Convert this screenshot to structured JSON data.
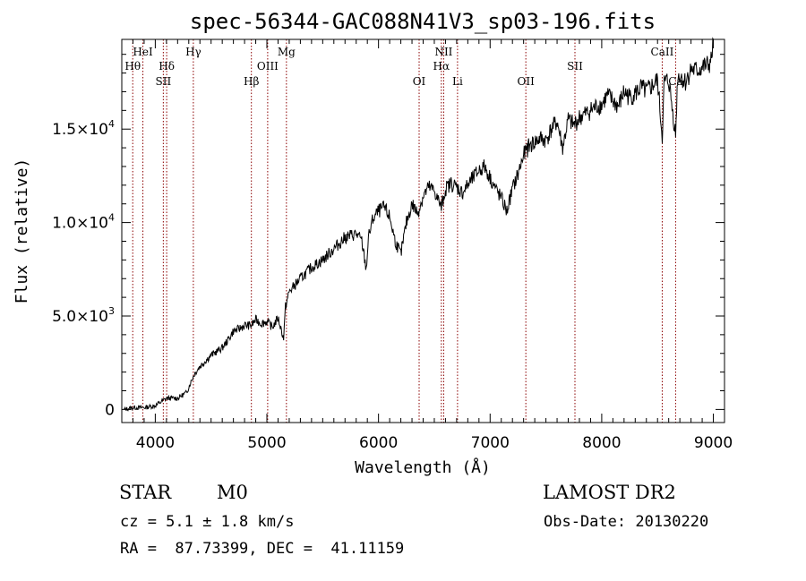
{
  "chart_data": {
    "type": "line",
    "title": "spec-56344-GAC088N41V3_sp03-196.fits",
    "xlabel": "Wavelength (Å)",
    "ylabel": "Flux (relative)",
    "xlim": [
      3700,
      9100
    ],
    "ylim": [
      -700,
      19800
    ],
    "x_ticks": [
      4000,
      5000,
      6000,
      7000,
      8000,
      9000
    ],
    "y_ticks": [
      {
        "value": 0,
        "label": "0"
      },
      {
        "value": 5000,
        "label": "5.0×10",
        "exp": "3"
      },
      {
        "value": 10000,
        "label": "1.0×10",
        "exp": "4"
      },
      {
        "value": 15000,
        "label": "1.5×10",
        "exp": "4"
      }
    ],
    "series": [
      {
        "line_color": "#000000",
        "x": [
          3720,
          3800,
          3900,
          4000,
          4050,
          4100,
          4200,
          4280,
          4300,
          4350,
          4400,
          4500,
          4600,
          4650,
          4700,
          4750,
          4800,
          4861,
          4900,
          4950,
          5000,
          5050,
          5100,
          5150,
          5167,
          5200,
          5300,
          5400,
          5500,
          5600,
          5700,
          5800,
          5850,
          5890,
          5910,
          5950,
          6000,
          6050,
          6100,
          6150,
          6200,
          6250,
          6300,
          6350,
          6400,
          6450,
          6500,
          6563,
          6600,
          6650,
          6700,
          6750,
          6800,
          6850,
          6900,
          6950,
          7000,
          7050,
          7100,
          7150,
          7200,
          7250,
          7300,
          7350,
          7400,
          7450,
          7500,
          7550,
          7600,
          7650,
          7700,
          7750,
          7800,
          7850,
          7900,
          7950,
          8000,
          8050,
          8100,
          8150,
          8200,
          8250,
          8300,
          8350,
          8400,
          8450,
          8500,
          8542,
          8560,
          8600,
          8662,
          8680,
          8700,
          8750,
          8800,
          8850,
          8900,
          8950,
          8980,
          9000
        ],
        "y": [
          0,
          100,
          100,
          200,
          400,
          600,
          600,
          900,
          1200,
          1900,
          2300,
          2900,
          3300,
          3700,
          4200,
          4300,
          4500,
          4500,
          4800,
          4600,
          4700,
          4400,
          4900,
          3800,
          5500,
          6300,
          7000,
          7600,
          8000,
          8600,
          9200,
          9400,
          9000,
          7500,
          9200,
          10200,
          10600,
          10800,
          10300,
          9000,
          8300,
          10000,
          11000,
          10500,
          11400,
          11900,
          11700,
          10800,
          11800,
          12100,
          11900,
          11600,
          12000,
          12400,
          12800,
          13000,
          12400,
          11800,
          11300,
          10600,
          11800,
          12600,
          13600,
          14100,
          14300,
          14500,
          14400,
          15000,
          15400,
          14000,
          15500,
          15200,
          15600,
          15800,
          16000,
          16200,
          16300,
          16800,
          16500,
          16200,
          17000,
          16700,
          16900,
          17200,
          17000,
          17300,
          17600,
          14600,
          17500,
          17600,
          14700,
          17800,
          17900,
          17500,
          18200,
          18100,
          18300,
          18400,
          18600,
          19800
        ]
      }
    ],
    "lines": [
      {
        "label": "Hθ",
        "wavelength": 3798,
        "row": 2
      },
      {
        "label": "HeI",
        "wavelength": 3889,
        "row": 1
      },
      {
        "label": "Hδ",
        "wavelength": 4102,
        "row": 2
      },
      {
        "label": "SII",
        "wavelength": 4072,
        "row": 3
      },
      {
        "label": "Hγ",
        "wavelength": 4341,
        "row": 1
      },
      {
        "label": "Hβ",
        "wavelength": 4861,
        "row": 3
      },
      {
        "label": "OIII",
        "wavelength": 5007,
        "row": 2
      },
      {
        "label": "Mg",
        "wavelength": 5175,
        "row": 1
      },
      {
        "label": "OI",
        "wavelength": 6364,
        "row": 3
      },
      {
        "label": "NII",
        "wavelength": 6584,
        "row": 1
      },
      {
        "label": "Hα",
        "wavelength": 6563,
        "row": 2
      },
      {
        "label": "Li",
        "wavelength": 6708,
        "row": 3
      },
      {
        "label": "OII",
        "wavelength": 7320,
        "row": 3
      },
      {
        "label": "SII",
        "wavelength": 7760,
        "row": 2
      },
      {
        "label": "CaII",
        "wavelength": 8542,
        "row": 1
      },
      {
        "label": "Ca",
        "wavelength": 8662,
        "row": 3
      }
    ],
    "spectral_line_color": "#8b0000",
    "grid": false
  },
  "info": {
    "object_class": "STAR",
    "subclass": "M0",
    "survey": "LAMOST DR2",
    "cz": "cz = 5.1 ± 1.8 km/s",
    "obs_date": "Obs-Date: 20130220",
    "radec": "RA =  87.73399, DEC =  41.11159"
  }
}
